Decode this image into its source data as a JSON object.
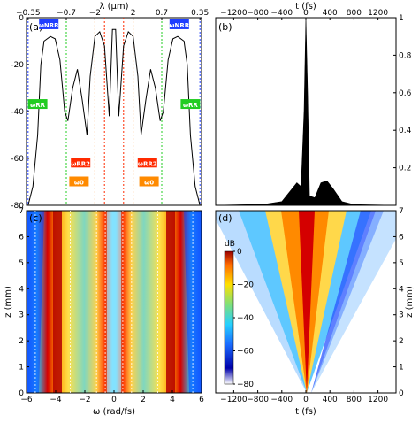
{
  "chart_data": [
    {
      "panel": "(a)",
      "type": "line",
      "bottom_axis_ticks": [],
      "top_axis_label": "λ (μm)",
      "top_axis_ticks": [
        "−0.35",
        "−0.7",
        "−2",
        "2",
        "0.7",
        "0.35"
      ],
      "y_ticks": [
        0,
        -20,
        -40,
        -60,
        -80
      ],
      "y_range": [
        -80,
        0
      ],
      "x_range_rad_per_fs": [
        -5.5,
        5.5
      ],
      "annotations": [
        "ωNRR",
        "ωRR",
        "ωRR2",
        "ω0",
        "ωNRR",
        "ωRR",
        "ωRR2",
        "ω0"
      ],
      "marker_lines": [
        {
          "omega": -5.4,
          "color": "#1f3fff"
        },
        {
          "omega": -3.0,
          "color": "#22cc22"
        },
        {
          "omega": -1.2,
          "color": "#ff7700"
        },
        {
          "omega": -0.6,
          "color": "#ff2a00"
        },
        {
          "omega": 0.6,
          "color": "#ff2a00"
        },
        {
          "omega": 1.2,
          "color": "#ff7700"
        },
        {
          "omega": 3.0,
          "color": "#22cc22"
        },
        {
          "omega": 5.4,
          "color": "#1f3fff"
        }
      ],
      "spectrum": [
        {
          "x": -5.4,
          "y": -80
        },
        {
          "x": -5.1,
          "y": -72
        },
        {
          "x": -4.8,
          "y": -50
        },
        {
          "x": -4.6,
          "y": -20
        },
        {
          "x": -4.4,
          "y": -10
        },
        {
          "x": -4.0,
          "y": -8
        },
        {
          "x": -3.7,
          "y": -9
        },
        {
          "x": -3.4,
          "y": -18
        },
        {
          "x": -3.1,
          "y": -40
        },
        {
          "x": -2.9,
          "y": -44
        },
        {
          "x": -2.6,
          "y": -30
        },
        {
          "x": -2.3,
          "y": -22
        },
        {
          "x": -2.0,
          "y": -35
        },
        {
          "x": -1.7,
          "y": -50
        },
        {
          "x": -1.5,
          "y": -25
        },
        {
          "x": -1.2,
          "y": -8
        },
        {
          "x": -0.9,
          "y": -6
        },
        {
          "x": -0.6,
          "y": -12
        },
        {
          "x": -0.3,
          "y": -42
        },
        {
          "x": -0.1,
          "y": -5
        },
        {
          "x": 0.1,
          "y": -5
        },
        {
          "x": 0.3,
          "y": -42
        },
        {
          "x": 0.6,
          "y": -12
        },
        {
          "x": 0.9,
          "y": -6
        },
        {
          "x": 1.2,
          "y": -8
        },
        {
          "x": 1.5,
          "y": -25
        },
        {
          "x": 1.7,
          "y": -50
        },
        {
          "x": 2.0,
          "y": -35
        },
        {
          "x": 2.3,
          "y": -22
        },
        {
          "x": 2.6,
          "y": -30
        },
        {
          "x": 2.9,
          "y": -44
        },
        {
          "x": 3.1,
          "y": -40
        },
        {
          "x": 3.4,
          "y": -18
        },
        {
          "x": 3.7,
          "y": -9
        },
        {
          "x": 4.0,
          "y": -8
        },
        {
          "x": 4.4,
          "y": -10
        },
        {
          "x": 4.6,
          "y": -20
        },
        {
          "x": 4.8,
          "y": -50
        },
        {
          "x": 5.1,
          "y": -72
        },
        {
          "x": 5.4,
          "y": -80
        }
      ]
    },
    {
      "panel": "(b)",
      "type": "area",
      "top_axis_label": "t (fs)",
      "x_ticks": [
        -1200,
        -800,
        -400,
        0,
        400,
        800,
        1200
      ],
      "y_ticks": [
        0.2,
        0.4,
        0.6,
        0.8,
        1.0
      ],
      "y_range": [
        0,
        1.0
      ],
      "x_range": [
        -1500,
        1500
      ],
      "series": [
        {
          "x": -1500,
          "y": 0
        },
        {
          "x": -700,
          "y": 0.005
        },
        {
          "x": -400,
          "y": 0.02
        },
        {
          "x": -250,
          "y": 0.08
        },
        {
          "x": -150,
          "y": 0.12
        },
        {
          "x": -80,
          "y": 0.1
        },
        {
          "x": -30,
          "y": 0.5
        },
        {
          "x": 0,
          "y": 1.0
        },
        {
          "x": 30,
          "y": 0.6
        },
        {
          "x": 60,
          "y": 0.05
        },
        {
          "x": 150,
          "y": 0.04
        },
        {
          "x": 250,
          "y": 0.12
        },
        {
          "x": 350,
          "y": 0.13
        },
        {
          "x": 450,
          "y": 0.09
        },
        {
          "x": 600,
          "y": 0.02
        },
        {
          "x": 800,
          "y": 0.004
        },
        {
          "x": 1500,
          "y": 0
        }
      ]
    },
    {
      "panel": "(c)",
      "type": "heatmap",
      "xlabel": "ω (rad/fs)",
      "ylabel": "z (mm)",
      "x_ticks": [
        -6,
        -4,
        -2,
        0,
        2,
        4,
        6
      ],
      "y_ticks": [
        0,
        1,
        2,
        3,
        4,
        5,
        6,
        7
      ],
      "x_range": [
        -6,
        6
      ],
      "y_range": [
        0,
        7
      ]
    },
    {
      "panel": "(d)",
      "type": "heatmap",
      "xlabel": "t (fs)",
      "ylabel": "z (mm)",
      "x_ticks": [
        -1200,
        -800,
        -400,
        0,
        400,
        800,
        1200
      ],
      "y_ticks": [
        0,
        1,
        2,
        3,
        4,
        5,
        6,
        7
      ],
      "x_range": [
        -1500,
        1500
      ],
      "y_range": [
        0,
        7
      ],
      "colorbar": {
        "label": "dB",
        "ticks": [
          0,
          -20,
          -40,
          -60,
          -80
        ],
        "range": [
          -80,
          0
        ]
      }
    }
  ],
  "colors": {
    "red": "#c80000",
    "yellow": "#ffe14a",
    "cyan": "#3fd0f0",
    "blue": "#1535ff",
    "navy": "#00006a"
  }
}
